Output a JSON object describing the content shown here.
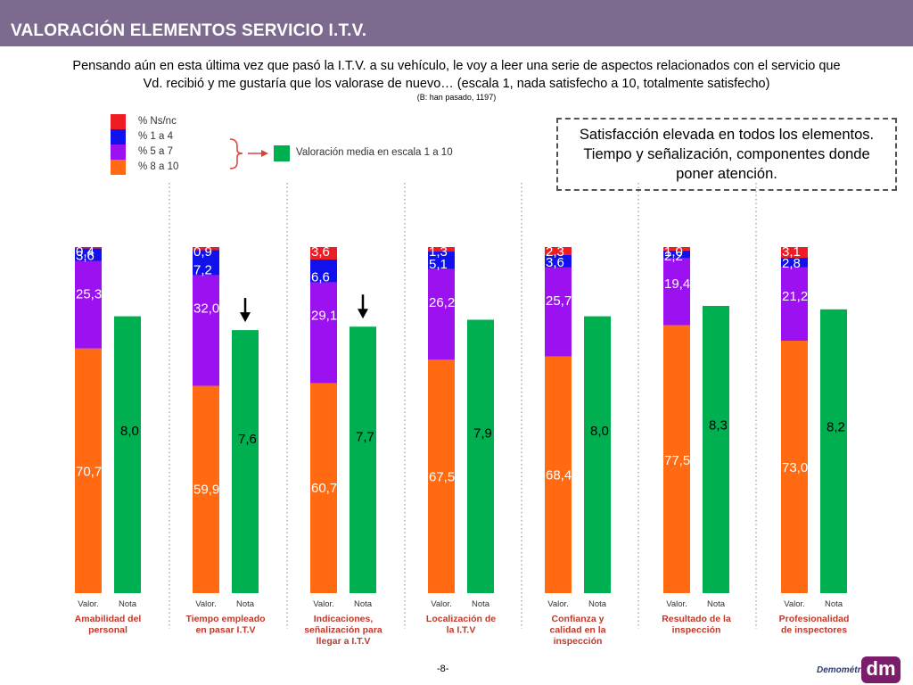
{
  "header": {
    "title": "VALORACIÓN ELEMENTOS SERVICIO I.T.V."
  },
  "question": {
    "line1": "Pensando aún en esta última vez que pasó la I.T.V. a su vehículo, le voy a leer una serie de aspectos relacionados con el servicio que",
    "line2": "Vd. recibió y me gustaría que los valorase de nuevo… (escala 1, nada satisfecho a 10, totalmente satisfecho)",
    "base": "(B: han pasado, 1197)"
  },
  "callout": {
    "line1": "Satisfacción elevada en todos los elementos.",
    "line2": "Tiempo y señalización, componentes donde",
    "line3": "poner atención."
  },
  "colors": {
    "ns": "#ee1c25",
    "r1a4": "#1111ee",
    "r5a7": "#9b11f0",
    "r8a10": "#ff6a13",
    "mean": "#00b050"
  },
  "footer": {
    "page": "-8-",
    "logo_text": "Demométrica",
    "logo_mark": "dm"
  },
  "chart_data": {
    "type": "bar",
    "legend": [
      {
        "key": "ns",
        "label": "% Ns/nc"
      },
      {
        "key": "r1a4",
        "label": "% 1 a 4"
      },
      {
        "key": "r5a7",
        "label": "% 5 a 7"
      },
      {
        "key": "r8a10",
        "label": "% 8 a 10"
      }
    ],
    "mean_legend": "Valoración media en escala 1 a 10",
    "sub_labels": {
      "valor": "Valor.",
      "nota": "Nota"
    },
    "categories": [
      {
        "label": [
          "Amabilidad del",
          "personal"
        ],
        "r8a10": 70.7,
        "r5a7": 25.3,
        "r1a4": 3.6,
        "ns": 0.4,
        "r8a10_label": "70,7",
        "r5a7_label": "25,3",
        "r1a4_label": "3,6",
        "ns_label": "0,4",
        "mean": 8.0,
        "mean_label": "8,0",
        "arrow": false
      },
      {
        "label": [
          "Tiempo empleado",
          "en pasar I.T.V"
        ],
        "r8a10": 59.9,
        "r5a7": 32.0,
        "r1a4": 7.2,
        "ns": 0.9,
        "r8a10_label": "59,9",
        "r5a7_label": "32,0",
        "r1a4_label": "7,2",
        "ns_label": "0,9",
        "mean": 7.6,
        "mean_label": "7,6",
        "arrow": true
      },
      {
        "label": [
          "Indicaciones,",
          "señalización para",
          "llegar a I.T.V"
        ],
        "r8a10": 60.7,
        "r5a7": 29.1,
        "r1a4": 6.6,
        "ns": 3.6,
        "r8a10_label": "60,7",
        "r5a7_label": "29,1",
        "r1a4_label": "6,6",
        "ns_label": "3,6",
        "mean": 7.7,
        "mean_label": "7,7",
        "arrow": true
      },
      {
        "label": [
          "Localización de",
          "la I.T.V"
        ],
        "r8a10": 67.5,
        "r5a7": 26.2,
        "r1a4": 5.1,
        "ns": 1.3,
        "r8a10_label": "67,5",
        "r5a7_label": "26,2",
        "r1a4_label": "5,1",
        "ns_label": "1,3",
        "mean": 7.9,
        "mean_label": "7,9",
        "arrow": false
      },
      {
        "label": [
          "Confianza y",
          "calidad en la",
          "inspección"
        ],
        "r8a10": 68.4,
        "r5a7": 25.7,
        "r1a4": 3.6,
        "ns": 2.3,
        "r8a10_label": "68,4",
        "r5a7_label": "25,7",
        "r1a4_label": "3,6",
        "ns_label": "2,3",
        "mean": 8.0,
        "mean_label": "8,0",
        "arrow": false
      },
      {
        "label": [
          "Resultado de la",
          "inspección"
        ],
        "r8a10": 77.5,
        "r5a7": 19.4,
        "r1a4": 2.2,
        "ns": 1.0,
        "r8a10_label": "77,5",
        "r5a7_label": "19,4",
        "r1a4_label": "2,2",
        "ns_label": "1,0",
        "mean": 8.3,
        "mean_label": "8,3",
        "arrow": false
      },
      {
        "label": [
          "Profesionalidad",
          "de inspectores"
        ],
        "r8a10": 73.0,
        "r5a7": 21.2,
        "r1a4": 2.8,
        "ns": 3.1,
        "r8a10_label": "73,0",
        "r5a7_label": "21,2",
        "r1a4_label": "2,8",
        "ns_label": "3,1",
        "mean": 8.2,
        "mean_label": "8,2",
        "arrow": false
      }
    ],
    "value_axis": [
      0,
      100
    ],
    "mean_axis": [
      0,
      10
    ]
  }
}
